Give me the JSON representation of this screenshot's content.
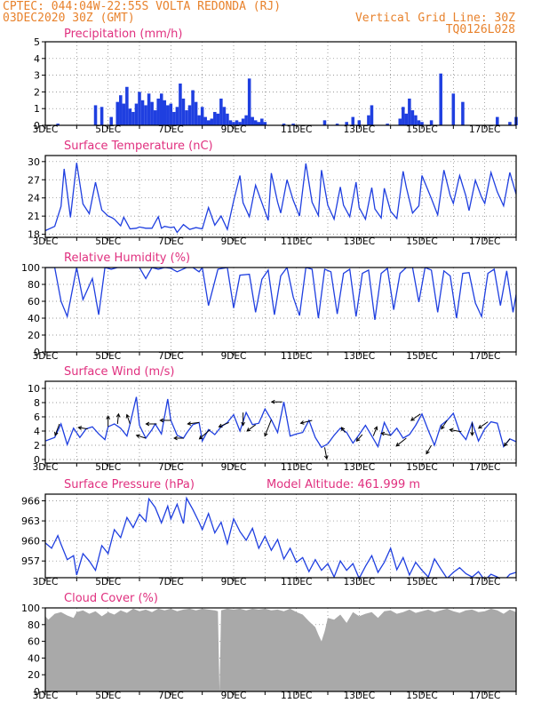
{
  "header": {
    "line1": "CPTEC:   044:04W-22:55S  VOLTA REDONDA (RJ)",
    "line2": "03DEC2020 30Z (GMT)",
    "grid_note": "Vertical Grid Line: 30Z",
    "code": "TQ0126L028"
  },
  "colors": {
    "header": "#e8822c",
    "panel_title": "#e0307f",
    "series": "#1f3fe0",
    "cloud": "#a9a9a9",
    "wind_arrow": "#000000"
  },
  "chart_data": [
    {
      "type": "bar",
      "title": "Precipitation  (mm/h)",
      "x_tick_labels": [
        "3DEC",
        "5DEC",
        "7DEC",
        "9DEC",
        "11DEC",
        "13DEC",
        "15DEC",
        "17DEC"
      ],
      "ylim": [
        0,
        5
      ],
      "y_ticks": [
        0,
        1,
        2,
        3,
        4,
        5
      ],
      "x_days": [
        3.4,
        4.6,
        4.8,
        5.1,
        5.3,
        5.4,
        5.5,
        5.6,
        5.7,
        5.8,
        5.9,
        6.0,
        6.1,
        6.2,
        6.3,
        6.4,
        6.5,
        6.6,
        6.7,
        6.8,
        6.9,
        7.0,
        7.1,
        7.2,
        7.3,
        7.4,
        7.5,
        7.6,
        7.7,
        7.8,
        7.9,
        8.0,
        8.1,
        8.2,
        8.3,
        8.4,
        8.5,
        8.6,
        8.7,
        8.8,
        8.9,
        9.0,
        9.1,
        9.2,
        9.3,
        9.4,
        9.5,
        9.6,
        9.7,
        9.8,
        9.9,
        10.0,
        10.6,
        10.9,
        11.9,
        12.3,
        12.6,
        12.8,
        13.0,
        13.3,
        13.4,
        13.9,
        14.3,
        14.4,
        14.5,
        14.6,
        14.7,
        14.8,
        14.9,
        15.0,
        15.3,
        15.6,
        16.0,
        16.3,
        17.4,
        17.8,
        18.0
      ],
      "values": [
        0.1,
        1.2,
        1.1,
        0.5,
        1.4,
        1.8,
        1.3,
        2.3,
        1.0,
        0.8,
        1.3,
        2.0,
        1.5,
        1.2,
        1.9,
        1.4,
        0.9,
        1.6,
        1.9,
        1.5,
        1.2,
        1.3,
        0.8,
        1.1,
        2.5,
        1.6,
        0.9,
        1.2,
        2.1,
        1.4,
        0.6,
        1.1,
        0.5,
        0.3,
        0.4,
        0.8,
        0.7,
        1.6,
        1.1,
        0.7,
        0.3,
        0.2,
        0.3,
        0.2,
        0.4,
        0.6,
        2.8,
        0.5,
        0.3,
        0.2,
        0.4,
        0.2,
        0.1,
        0.1,
        0.3,
        0.1,
        0.2,
        0.5,
        0.3,
        0.6,
        1.2,
        0.1,
        0.4,
        1.1,
        0.7,
        1.6,
        0.9,
        0.6,
        0.3,
        0.2,
        0.3,
        3.1,
        1.9,
        1.4,
        0.5,
        0.2,
        0.5
      ]
    },
    {
      "type": "line",
      "title": "Surface Temperature (nC)",
      "x_tick_labels": [
        "3DEC",
        "5DEC",
        "7DEC",
        "9DEC",
        "11DEC",
        "13DEC",
        "15DEC",
        "17DEC"
      ],
      "ylim": [
        17.5,
        31
      ],
      "y_ticks": [
        18,
        21,
        24,
        27,
        30
      ],
      "x_days": [
        3.0,
        3.3,
        3.5,
        3.6,
        3.8,
        4.0,
        4.2,
        4.4,
        4.6,
        4.8,
        5.0,
        5.1,
        5.2,
        5.4,
        5.5,
        5.7,
        5.9,
        6.0,
        6.2,
        6.4,
        6.6,
        6.7,
        6.8,
        7.0,
        7.1,
        7.2,
        7.4,
        7.6,
        7.8,
        8.0,
        8.2,
        8.4,
        8.6,
        8.8,
        9.0,
        9.2,
        9.3,
        9.5,
        9.7,
        9.9,
        10.1,
        10.2,
        10.4,
        10.5,
        10.7,
        10.9,
        11.1,
        11.3,
        11.5,
        11.7,
        11.8,
        12.0,
        12.2,
        12.4,
        12.5,
        12.7,
        12.9,
        13.0,
        13.2,
        13.4,
        13.5,
        13.7,
        13.8,
        14.0,
        14.2,
        14.4,
        14.5,
        14.7,
        14.9,
        15.0,
        15.3,
        15.5,
        15.7,
        15.9,
        16.0,
        16.2,
        16.4,
        16.5,
        16.7,
        16.9,
        17.0,
        17.2,
        17.4,
        17.6,
        17.8,
        18.0
      ],
      "values": [
        18.6,
        19.3,
        22.6,
        28.8,
        20.8,
        29.8,
        23.0,
        21.4,
        26.6,
        22.0,
        21.0,
        20.8,
        20.5,
        19.4,
        20.8,
        18.9,
        19.0,
        19.2,
        19.0,
        19.0,
        20.9,
        19.0,
        19.3,
        19.1,
        19.2,
        18.3,
        19.6,
        18.8,
        19.1,
        18.9,
        22.4,
        19.5,
        21.0,
        18.8,
        23.5,
        27.7,
        23.2,
        20.9,
        26.1,
        23.2,
        20.3,
        28.1,
        23.3,
        21.5,
        27.0,
        23.6,
        21.0,
        29.7,
        23.3,
        21.1,
        28.6,
        22.8,
        20.5,
        25.8,
        22.8,
        20.9,
        26.6,
        22.4,
        20.5,
        25.7,
        22.2,
        20.7,
        25.6,
        21.8,
        20.6,
        28.4,
        25.8,
        21.5,
        22.7,
        27.7,
        23.9,
        21.2,
        28.6,
        24.4,
        23.1,
        27.7,
        24.3,
        21.9,
        26.9,
        24.1,
        23.1,
        28.2,
        25.0,
        22.7,
        28.2,
        24.6
      ]
    },
    {
      "type": "line",
      "title": "Relative Humidity (%)",
      "x_tick_labels": [
        "3DEC",
        "5DEC",
        "7DEC",
        "9DEC",
        "11DEC",
        "13DEC",
        "15DEC",
        "17DEC"
      ],
      "ylim": [
        0,
        100
      ],
      "y_ticks": [
        0,
        20,
        40,
        60,
        80,
        100
      ],
      "x_days": [
        3.0,
        3.3,
        3.5,
        3.7,
        4.0,
        4.2,
        4.5,
        4.7,
        4.9,
        5.1,
        5.3,
        5.5,
        5.8,
        6.0,
        6.2,
        6.4,
        6.6,
        6.8,
        7.0,
        7.2,
        7.5,
        7.7,
        7.9,
        8.0,
        8.2,
        8.5,
        8.8,
        9.0,
        9.2,
        9.5,
        9.7,
        9.9,
        10.1,
        10.3,
        10.5,
        10.7,
        10.9,
        11.1,
        11.3,
        11.5,
        11.7,
        11.9,
        12.1,
        12.3,
        12.5,
        12.7,
        12.9,
        13.1,
        13.3,
        13.5,
        13.7,
        13.9,
        14.1,
        14.3,
        14.5,
        14.7,
        14.9,
        15.1,
        15.3,
        15.5,
        15.7,
        15.9,
        16.1,
        16.3,
        16.5,
        16.7,
        16.9,
        17.1,
        17.3,
        17.5,
        17.7,
        17.9,
        18.0
      ],
      "values": [
        100,
        100,
        60,
        42,
        100,
        62,
        87,
        44,
        100,
        98,
        100,
        100,
        100,
        100,
        87,
        100,
        98,
        100,
        99,
        95,
        100,
        100,
        95,
        100,
        55,
        98,
        100,
        52,
        91,
        92,
        47,
        86,
        97,
        44,
        90,
        100,
        65,
        43,
        100,
        98,
        40,
        98,
        95,
        45,
        93,
        98,
        42,
        93,
        97,
        38,
        93,
        99,
        50,
        93,
        100,
        100,
        59,
        100,
        97,
        47,
        96,
        90,
        40,
        93,
        94,
        58,
        42,
        93,
        98,
        55,
        96,
        47,
        68
      ]
    },
    {
      "type": "line",
      "title": "Surface Wind (m/s)",
      "x_tick_labels": [
        "3DEC",
        "5DEC",
        "7DEC",
        "9DEC",
        "11DEC",
        "13DEC",
        "15DEC",
        "17DEC"
      ],
      "ylim": [
        -0.5,
        11
      ],
      "y_ticks": [
        0,
        2,
        4,
        6,
        8,
        10
      ],
      "x_days": [
        3.0,
        3.3,
        3.5,
        3.7,
        3.9,
        4.1,
        4.3,
        4.5,
        4.7,
        4.9,
        5.0,
        5.2,
        5.4,
        5.6,
        5.7,
        5.9,
        6.0,
        6.2,
        6.4,
        6.5,
        6.7,
        6.9,
        7.0,
        7.2,
        7.4,
        7.5,
        7.7,
        7.9,
        8.0,
        8.2,
        8.4,
        8.6,
        8.8,
        9.0,
        9.2,
        9.4,
        9.6,
        9.8,
        10.0,
        10.2,
        10.4,
        10.6,
        10.8,
        11.0,
        11.2,
        11.4,
        11.6,
        11.8,
        12.0,
        12.2,
        12.4,
        12.6,
        12.8,
        13.0,
        13.2,
        13.4,
        13.6,
        13.8,
        14.0,
        14.2,
        14.4,
        14.6,
        14.8,
        15.0,
        15.2,
        15.4,
        15.6,
        15.8,
        16.0,
        16.2,
        16.4,
        16.6,
        16.8,
        17.0,
        17.2,
        17.4,
        17.6,
        17.8,
        18.0
      ],
      "values": [
        2.6,
        3.1,
        5.0,
        2.1,
        4.4,
        3.1,
        4.3,
        4.6,
        3.6,
        2.8,
        4.6,
        5.0,
        4.4,
        3.3,
        5.0,
        8.8,
        4.8,
        3.0,
        4.2,
        5.0,
        3.6,
        8.5,
        5.5,
        3.4,
        3.0,
        3.7,
        4.9,
        5.2,
        2.6,
        4.2,
        3.5,
        4.6,
        5.2,
        6.3,
        4.0,
        6.6,
        4.9,
        5.1,
        7.1,
        5.6,
        3.8,
        8.1,
        3.3,
        3.6,
        3.8,
        5.5,
        3.1,
        1.7,
        2.2,
        3.4,
        4.4,
        3.8,
        2.3,
        3.5,
        4.8,
        3.3,
        1.8,
        5.2,
        3.4,
        4.4,
        3.0,
        3.5,
        4.8,
        6.4,
        4.1,
        2.0,
        4.8,
        5.5,
        6.5,
        3.9,
        2.8,
        5.2,
        2.6,
        4.3,
        5.3,
        5.1,
        1.8,
        2.9,
        2.5
      ],
      "wind_arrows": [
        {
          "day": 3.45,
          "u": -1.2,
          "v": -3.2
        },
        {
          "day": 4.35,
          "u": -2.6,
          "v": 0.4
        },
        {
          "day": 5.0,
          "u": 0.0,
          "v": 3.0
        },
        {
          "day": 5.3,
          "u": 0.3,
          "v": 2.8
        },
        {
          "day": 5.7,
          "u": -0.9,
          "v": 2.6
        },
        {
          "day": 6.2,
          "u": -2.6,
          "v": 0.8
        },
        {
          "day": 6.55,
          "u": -3.0,
          "v": 0.0
        },
        {
          "day": 7.0,
          "u": -3.0,
          "v": 0.0
        },
        {
          "day": 7.4,
          "u": -2.6,
          "v": 0.0
        },
        {
          "day": 7.9,
          "u": -3.2,
          "v": -0.4
        },
        {
          "day": 8.25,
          "u": -3.0,
          "v": -2.6
        },
        {
          "day": 8.85,
          "u": -2.8,
          "v": -1.2
        },
        {
          "day": 9.3,
          "u": 0.0,
          "v": -3.6
        },
        {
          "day": 9.7,
          "u": -2.4,
          "v": -1.8
        },
        {
          "day": 10.2,
          "u": -1.8,
          "v": -4.6
        },
        {
          "day": 10.55,
          "u": -3.0,
          "v": 0.0
        },
        {
          "day": 11.5,
          "u": -3.2,
          "v": -0.8
        },
        {
          "day": 11.9,
          "u": 0.6,
          "v": -3.2
        },
        {
          "day": 12.55,
          "u": -1.0,
          "v": 1.4
        },
        {
          "day": 13.1,
          "u": -1.6,
          "v": -1.8
        },
        {
          "day": 13.45,
          "u": 1.0,
          "v": 2.6
        },
        {
          "day": 14.0,
          "u": -2.6,
          "v": 0.6
        },
        {
          "day": 14.5,
          "u": -2.8,
          "v": -2.2
        },
        {
          "day": 14.95,
          "u": -2.6,
          "v": -1.8
        },
        {
          "day": 15.3,
          "u": -1.4,
          "v": -2.4
        },
        {
          "day": 15.8,
          "u": -1.6,
          "v": -2.4
        },
        {
          "day": 16.25,
          "u": -3.2,
          "v": 0.6
        },
        {
          "day": 16.6,
          "u": 0.0,
          "v": -3.6
        },
        {
          "day": 17.1,
          "u": -2.6,
          "v": -1.8
        },
        {
          "day": 17.8,
          "u": -1.6,
          "v": -2.0
        }
      ]
    },
    {
      "type": "line",
      "title": "Surface Pressure (hPa)",
      "annotation": "Model Altitude: 461.999  m",
      "x_tick_labels": [
        "3DEC",
        "5DEC",
        "7DEC",
        "9DEC",
        "11DEC",
        "13DEC",
        "15DEC",
        "17DEC"
      ],
      "ylim": [
        954.5,
        967
      ],
      "y_ticks": [
        957,
        960,
        963,
        966
      ],
      "x_days": [
        3.0,
        3.2,
        3.4,
        3.5,
        3.7,
        3.9,
        4.0,
        4.2,
        4.4,
        4.6,
        4.8,
        5.0,
        5.2,
        5.4,
        5.6,
        5.8,
        6.0,
        6.2,
        6.3,
        6.5,
        6.7,
        6.9,
        7.0,
        7.2,
        7.4,
        7.5,
        7.7,
        7.9,
        8.0,
        8.2,
        8.4,
        8.6,
        8.8,
        9.0,
        9.2,
        9.4,
        9.6,
        9.8,
        10.0,
        10.2,
        10.4,
        10.6,
        10.8,
        11.0,
        11.2,
        11.4,
        11.6,
        11.8,
        12.0,
        12.2,
        12.4,
        12.6,
        12.8,
        13.0,
        13.2,
        13.4,
        13.6,
        13.8,
        14.0,
        14.2,
        14.4,
        14.6,
        14.8,
        15.0,
        15.2,
        15.4,
        15.6,
        15.8,
        16.0,
        16.2,
        16.4,
        16.6,
        16.8,
        17.0,
        17.2,
        17.4,
        17.6,
        17.8,
        18.0
      ],
      "values": [
        959.7,
        958.9,
        960.8,
        959.5,
        957.2,
        957.8,
        954.9,
        958.1,
        957.0,
        955.6,
        959.3,
        958.1,
        961.7,
        960.5,
        963.5,
        962.0,
        964.0,
        962.9,
        966.3,
        965.0,
        962.7,
        965.2,
        963.3,
        965.5,
        962.6,
        966.4,
        964.7,
        962.8,
        961.7,
        964.1,
        961.2,
        962.8,
        959.6,
        963.3,
        961.4,
        960.1,
        961.9,
        958.9,
        960.7,
        958.6,
        960.2,
        957.3,
        958.9,
        956.8,
        957.5,
        955.4,
        957.2,
        955.6,
        956.6,
        954.6,
        957.0,
        955.6,
        956.6,
        954.4,
        956.2,
        957.8,
        955.3,
        956.8,
        958.9,
        955.7,
        957.5,
        954.9,
        956.8,
        955.6,
        954.6,
        957.3,
        955.8,
        954.4,
        955.3,
        956.0,
        955.1,
        954.6,
        955.4,
        954.1,
        955.0,
        954.6,
        954.0,
        955.0,
        955.3
      ]
    },
    {
      "type": "area",
      "title": "Cloud Cover (%)",
      "x_tick_labels": [
        "3DEC",
        "5DEC",
        "7DEC",
        "9DEC",
        "11DEC",
        "13DEC",
        "15DEC",
        "17DEC"
      ],
      "ylim": [
        0,
        100
      ],
      "y_ticks": [
        0,
        20,
        40,
        60,
        80,
        100
      ],
      "x_days": [
        3.0,
        3.1,
        3.3,
        3.5,
        3.7,
        3.9,
        4.0,
        4.2,
        4.4,
        4.6,
        4.8,
        5.0,
        5.2,
        5.4,
        5.6,
        5.8,
        6.0,
        6.2,
        6.4,
        6.6,
        6.8,
        7.0,
        7.2,
        7.4,
        7.6,
        7.8,
        8.0,
        8.2,
        8.4,
        8.5,
        8.55,
        8.6,
        8.8,
        9.0,
        9.2,
        9.4,
        9.6,
        9.8,
        10.0,
        10.2,
        10.4,
        10.6,
        10.8,
        11.0,
        11.2,
        11.4,
        11.6,
        11.7,
        11.8,
        11.9,
        12.0,
        12.2,
        12.4,
        12.6,
        12.8,
        13.0,
        13.2,
        13.4,
        13.6,
        13.8,
        14.0,
        14.2,
        14.4,
        14.6,
        14.8,
        15.0,
        15.2,
        15.4,
        15.6,
        15.8,
        16.0,
        16.2,
        16.4,
        16.6,
        16.8,
        17.0,
        17.2,
        17.4,
        17.6,
        17.8,
        18.0
      ],
      "values": [
        90,
        86,
        93,
        95,
        91,
        88,
        95,
        97,
        93,
        96,
        90,
        95,
        92,
        97,
        94,
        99,
        96,
        98,
        95,
        99,
        97,
        99,
        96,
        98,
        99,
        97,
        99,
        98,
        97,
        96,
        0,
        97,
        99,
        98,
        99,
        97,
        99,
        98,
        99,
        97,
        98,
        96,
        99,
        95,
        92,
        84,
        77,
        68,
        60,
        72,
        88,
        86,
        92,
        82,
        95,
        90,
        93,
        95,
        88,
        96,
        97,
        93,
        95,
        98,
        94,
        96,
        98,
        95,
        97,
        99,
        96,
        94,
        97,
        98,
        95,
        96,
        99,
        97,
        93,
        98,
        95
      ]
    }
  ]
}
